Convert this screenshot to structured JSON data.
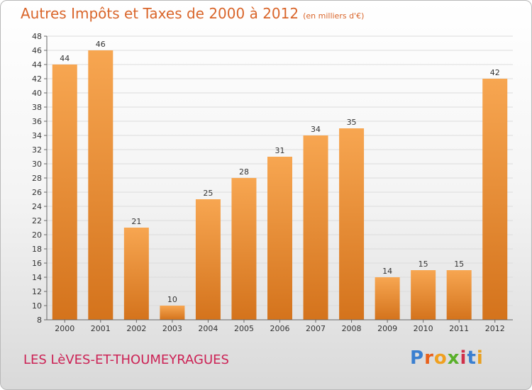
{
  "header": {
    "title": "Autres Impôts et Taxes de 2000 à 2012",
    "unit": "(en milliers d'€)"
  },
  "footer": {
    "commune": "LES LèVES-ET-THOUMEYRAGUES",
    "brand": "Proxiti"
  },
  "colors": {
    "bar_top": "#f7a651",
    "bar_bottom": "#d4731c",
    "title": "#d9652a",
    "commune": "#cc2255"
  },
  "chart_data": {
    "type": "bar",
    "categories": [
      "2000",
      "2001",
      "2002",
      "2003",
      "2004",
      "2005",
      "2006",
      "2007",
      "2008",
      "2009",
      "2010",
      "2011",
      "2012"
    ],
    "values": [
      44,
      46,
      21,
      10,
      25,
      28,
      31,
      34,
      35,
      14,
      15,
      15,
      42
    ],
    "ylim": [
      8,
      48
    ],
    "yticks": [
      8,
      10,
      12,
      14,
      16,
      18,
      20,
      22,
      24,
      26,
      28,
      30,
      32,
      34,
      36,
      38,
      40,
      42,
      44,
      46,
      48
    ],
    "grid": true,
    "title": "Autres Impôts et Taxes de 2000 à 2012",
    "xlabel": "",
    "ylabel": ""
  }
}
